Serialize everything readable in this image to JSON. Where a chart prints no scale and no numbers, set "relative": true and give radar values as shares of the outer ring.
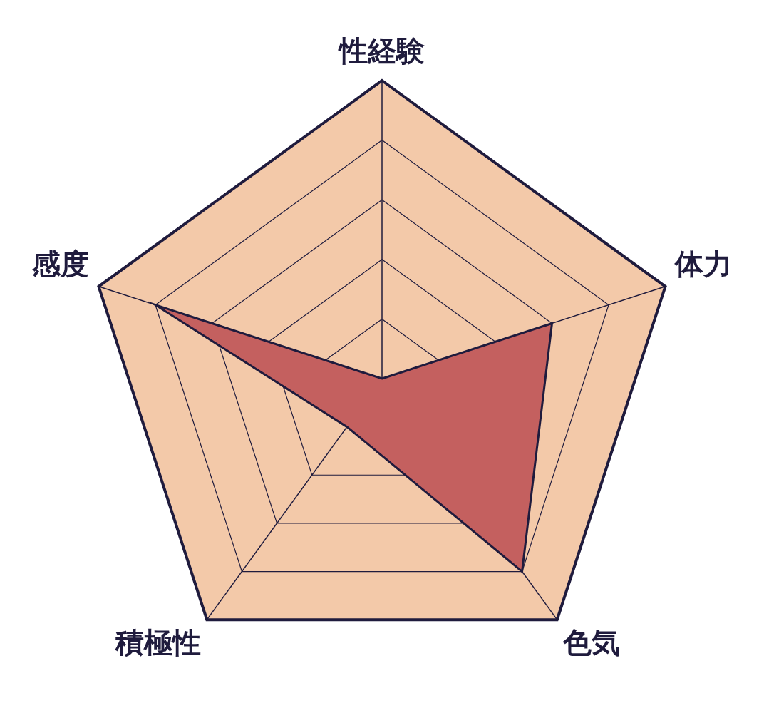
{
  "chart_data": {
    "type": "radar",
    "relative": true,
    "categories": [
      "性経験",
      "体力",
      "色気",
      "積極性",
      "感度"
    ],
    "series": [
      {
        "color": "#c4605f",
        "values": [
          0,
          0.6,
          0.8,
          0.2,
          0.8
        ]
      }
    ]
  }
}
